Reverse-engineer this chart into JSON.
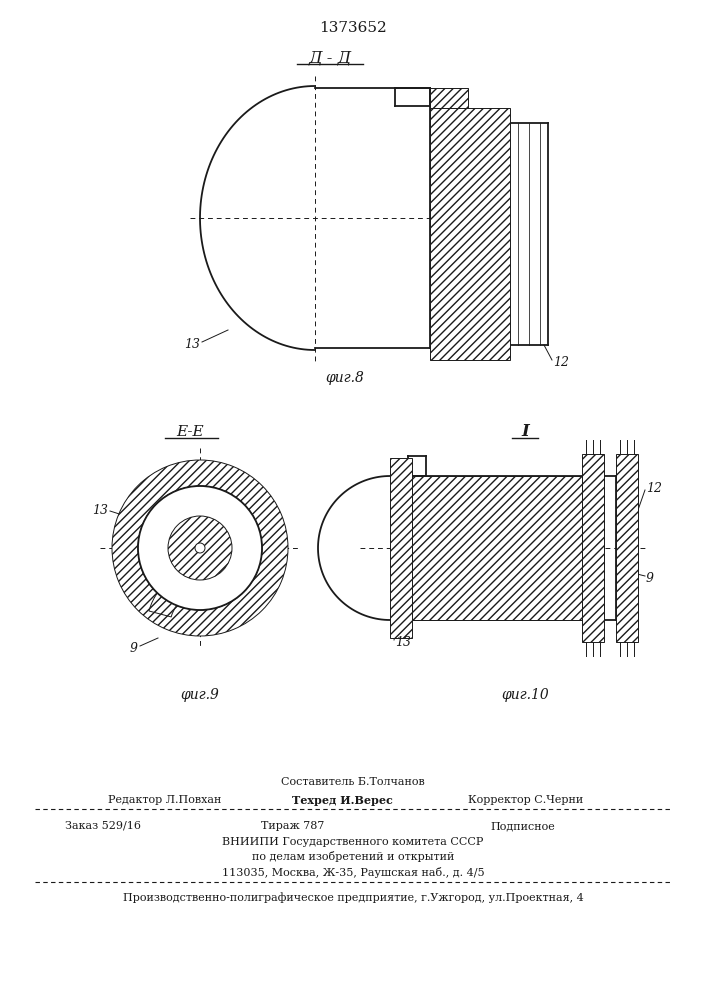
{
  "title_number": "1373652",
  "fig8_label": "Д - Д",
  "fig8_caption": "φиг.8",
  "fig9_label": "E-E",
  "fig9_caption": "φиг.9",
  "fig10_label": "I",
  "fig10_caption": "φиг.10",
  "label_12": "12",
  "label_13": "13",
  "label_9": "9",
  "footer_line1": "Составитель Б.Толчанов",
  "footer_line2_col1": "Редактор Л.Повхан",
  "footer_line2_col2": "Техред И.Верес",
  "footer_line2_col3": "Корректор С.Черни",
  "footer_line3_col1": "Заказ 529/16",
  "footer_line3_col2": "Тираж 787",
  "footer_line3_col3": "Подписное",
  "footer_line4": "ВНИИПИ Государственного комитета СССР",
  "footer_line5": "по делам изобретений и открытий",
  "footer_line6": "113035, Москва, Ж-35, Раушская наб., д. 4/5",
  "footer_last": "Производственно-полиграфическое предприятие, г.Ужгород, ул.Проектная, 4",
  "line_color": "#1a1a1a"
}
